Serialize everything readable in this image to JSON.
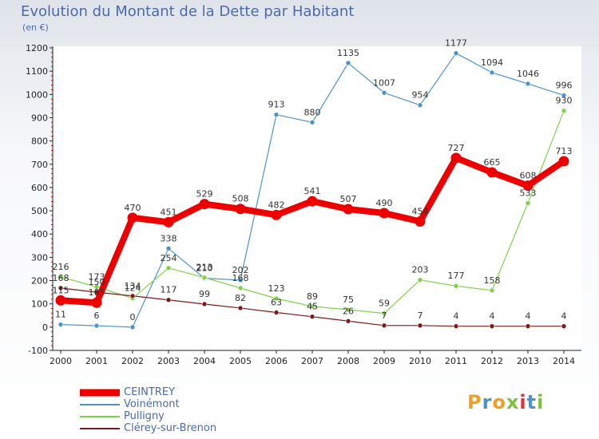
{
  "title": "Evolution du Montant de la Dette par Habitant",
  "unit": "(en €)",
  "logo": "Proxiti",
  "chart_data": {
    "type": "line",
    "title": "Evolution du Montant de la Dette par Habitant",
    "ylabel": "(en €)",
    "x": [
      2000,
      2001,
      2002,
      2003,
      2004,
      2005,
      2006,
      2007,
      2008,
      2009,
      2010,
      2011,
      2012,
      2013,
      2014
    ],
    "ylim": [
      -100,
      1200
    ],
    "yticks": [
      -100,
      0,
      100,
      200,
      300,
      400,
      500,
      600,
      700,
      800,
      900,
      1000,
      1100,
      1200
    ],
    "grid": false,
    "legend_position": "bottom-left",
    "series": [
      {
        "name": "CEINTREY",
        "color": "#ee0000",
        "values": [
          115,
          105,
          470,
          451,
          529,
          508,
          482,
          541,
          507,
          490,
          454,
          727,
          665,
          608,
          713
        ]
      },
      {
        "name": "Voinémont",
        "color": "#4d92cc",
        "values": [
          11,
          6,
          0,
          338,
          210,
          202,
          913,
          880,
          1135,
          1007,
          954,
          1177,
          1094,
          1046,
          996
        ]
      },
      {
        "name": "Pulligny",
        "color": "#7fd24a",
        "values": [
          216,
          173,
          124,
          254,
          213,
          168,
          123,
          89,
          75,
          59,
          203,
          177,
          158,
          533,
          930
        ]
      },
      {
        "name": "Clérey-sur-Brenon",
        "color": "#7a1a1a",
        "values": [
          168,
          150,
          134,
          117,
          99,
          82,
          63,
          45,
          26,
          7,
          7,
          4,
          4,
          4,
          4
        ]
      }
    ]
  }
}
